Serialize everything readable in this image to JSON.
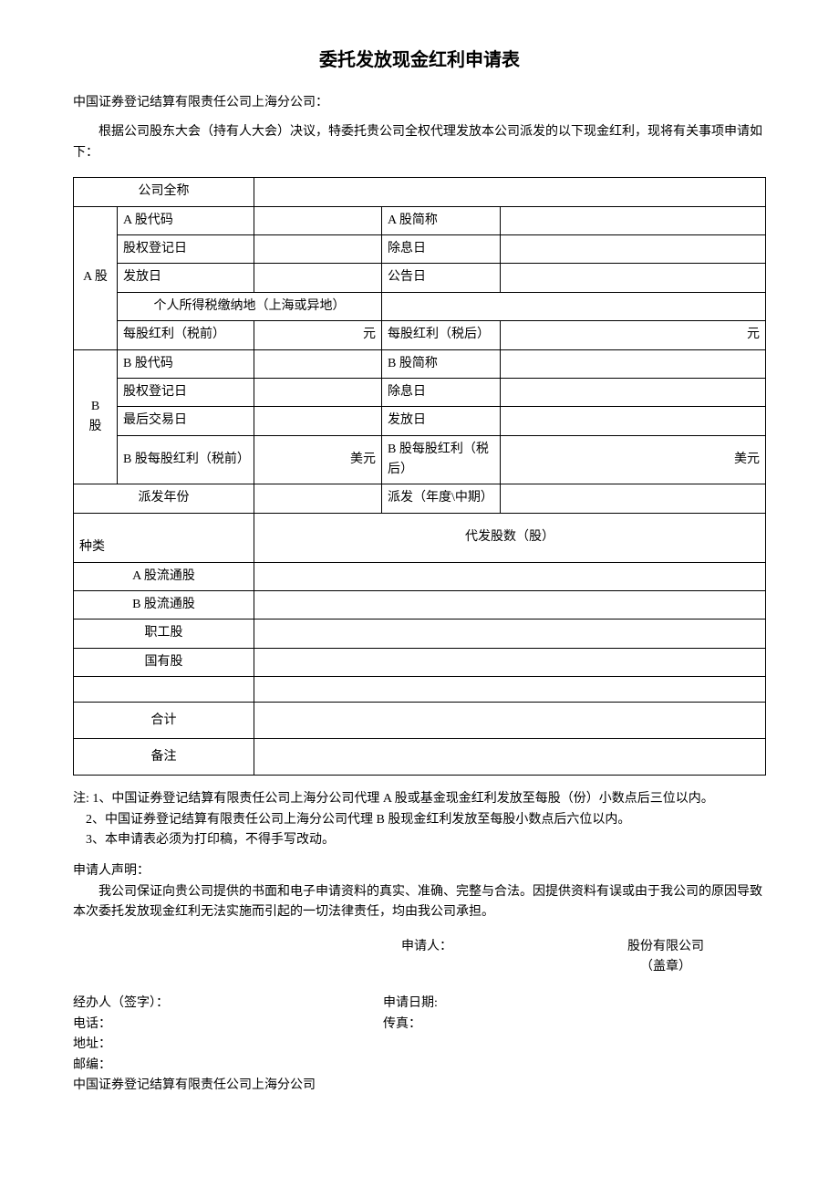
{
  "title": "委托发放现金红利申请表",
  "addressee": "中国证券登记结算有限责任公司上海分公司：",
  "intro": "根据公司股东大会（持有人大会）决议，特委托贵公司全权代理发放本公司派发的以下现金红利，现将有关事项申请如下：",
  "table": {
    "company_full_name_label": "公司全称",
    "a": {
      "section_label": "A 股",
      "code_label": "A 股代码",
      "short_label": "A 股简称",
      "reg_date_label": "股权登记日",
      "ex_date_label": "除息日",
      "pay_date_label": "发放日",
      "announce_date_label": "公告日",
      "tax_loc_label": "个人所得税缴纳地（上海或异地）",
      "div_pre_label": "每股红利（税前）",
      "div_pre_unit": "元",
      "div_post_label": "每股红利（税后）",
      "div_post_unit": "元"
    },
    "b": {
      "section_label": "B\n股",
      "code_label": "B 股代码",
      "short_label": "B 股简称",
      "reg_date_label": "股权登记日",
      "ex_date_label": "除息日",
      "last_trade_label": "最后交易日",
      "pay_date_label": "发放日",
      "div_pre_label": "B 股每股红利（税前）",
      "div_pre_unit": "美元",
      "div_post_label": "B 股每股红利（税后）",
      "div_post_unit": "美元"
    },
    "dist_year_label": "派发年份",
    "dist_period_label": "派发（年度\\中期）",
    "category_label": "\n种类",
    "shares_header": "代发股数（股）",
    "rows": {
      "a_circ": "A 股流通股",
      "b_circ": "B 股流通股",
      "staff": "职工股",
      "state": "国有股",
      "blank": "",
      "total": "合计",
      "remark": "备注"
    }
  },
  "notes": {
    "n1": "注: 1、中国证券登记结算有限责任公司上海分公司代理 A 股或基金现金红利发放至每股（份）小数点后三位以内。",
    "n2": "2、中国证券登记结算有限责任公司上海分公司代理 B 股现金红利发放至每股小数点后六位以内。",
    "n3": "3、本申请表必须为打印稿，不得手写改动。"
  },
  "declaration": {
    "title": "申请人声明：",
    "body": "我公司保证向贵公司提供的书面和电子申请资料的真实、准确、完整与合法。因提供资料有误或由于我公司的原因导致本次委托发放现金红利无法实施而引起的一切法律责任，均由我公司承担。"
  },
  "signature": {
    "applicant_label": "申请人：",
    "company_suffix": "股份有限公司",
    "seal": "（盖章）"
  },
  "footer": {
    "handler": "经办人（签字）：",
    "apply_date": "申请日期:",
    "phone": "电话：",
    "fax": "传真：",
    "address": "地址：",
    "postcode": "邮编：",
    "org": "中国证券登记结算有限责任公司上海分公司"
  }
}
